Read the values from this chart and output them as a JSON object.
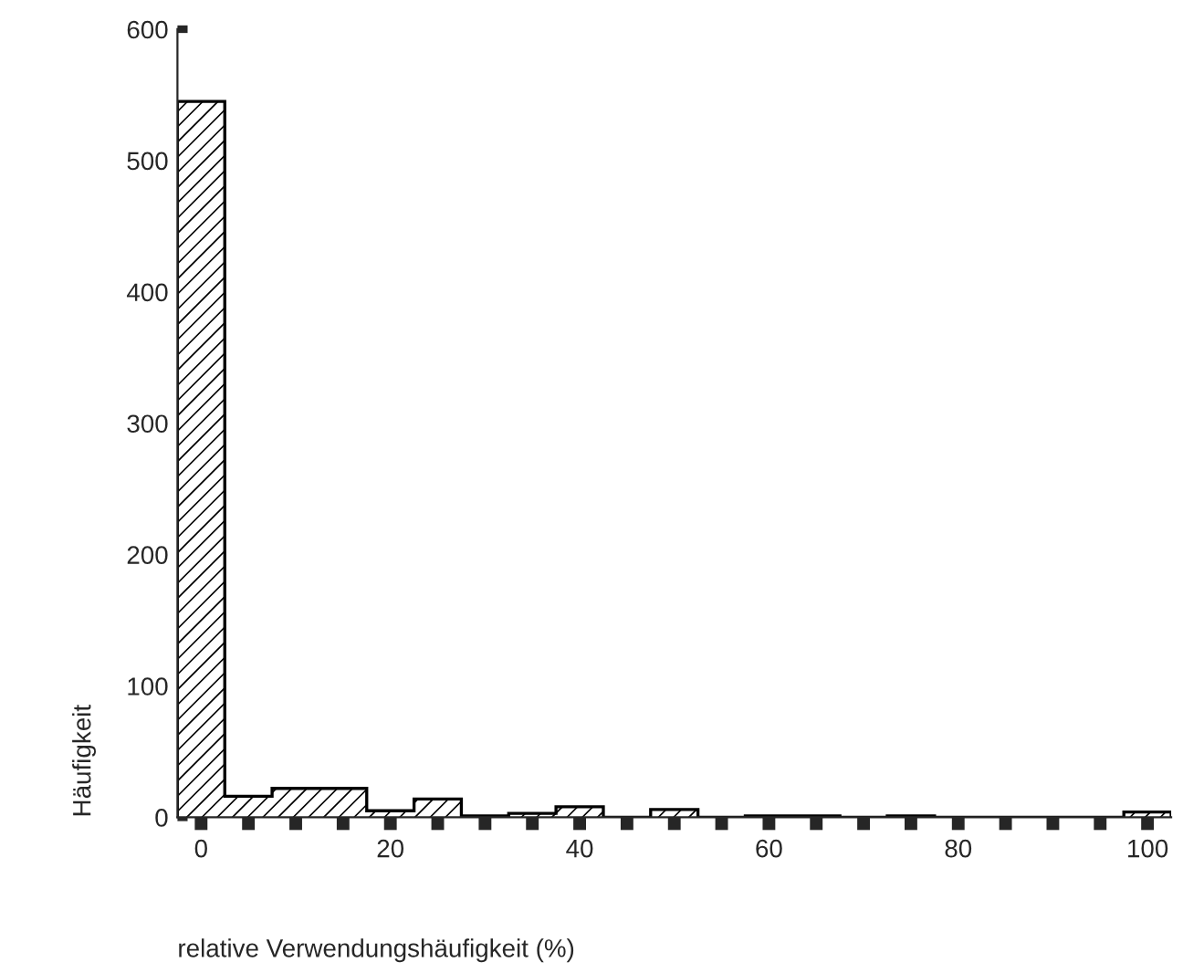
{
  "chart_data": {
    "type": "histogram",
    "xlabel": "relative Verwendungshäufigkeit (%)",
    "ylabel": "Häufigkeit",
    "bins": [
      -2.5,
      2.5,
      7.5,
      12.5,
      17.5,
      22.5,
      27.5,
      32.5,
      37.5,
      42.5,
      47.5,
      52.5,
      57.5,
      62.5,
      67.5,
      72.5,
      77.5,
      82.5,
      87.5,
      92.5,
      97.5,
      102.5
    ],
    "values": [
      545,
      16,
      22,
      22,
      5,
      14,
      1,
      3,
      8,
      0,
      6,
      0,
      1,
      1,
      0,
      1,
      0,
      0,
      0,
      0,
      4
    ],
    "color": "#000000",
    "xlim": [
      -2.5,
      102.5
    ],
    "xticks": [
      0,
      {
        "value": 5,
        "label": null
      },
      {
        "value": 10,
        "label": null
      },
      {
        "value": 15,
        "label": null
      },
      20,
      {
        "value": 25,
        "label": null
      },
      {
        "value": 30,
        "label": null
      },
      {
        "value": 35,
        "label": null
      },
      40,
      {
        "value": 45,
        "label": null
      },
      {
        "value": 50,
        "label": null
      },
      {
        "value": 55,
        "label": null
      },
      60,
      {
        "value": 65,
        "label": null
      },
      {
        "value": 70,
        "label": null
      },
      {
        "value": 75,
        "label": null
      },
      80,
      {
        "value": 85,
        "label": null
      },
      {
        "value": 90,
        "label": null
      },
      {
        "value": 95,
        "label": null
      },
      100
    ],
    "ylim": [
      0,
      600
    ],
    "yticks": [
      0,
      100,
      200,
      300,
      400,
      500,
      600
    ],
    "grid": false,
    "legend": false
  }
}
